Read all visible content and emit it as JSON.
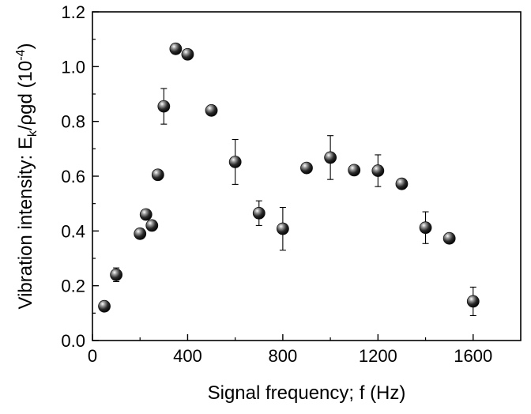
{
  "chart_data": {
    "type": "scatter",
    "xlabel": "Signal frequency; f (Hz)",
    "ylabel": {
      "prefix": "Vibration intensity: E",
      "sub": "k",
      "mid": "/ρgd (10",
      "sup": "-4",
      "suffix": ")"
    },
    "xlim": [
      0,
      1800
    ],
    "ylim": [
      0.0,
      1.2
    ],
    "xticks": [
      0,
      400,
      800,
      1200,
      1600
    ],
    "xtick_labels": [
      "0",
      "400",
      "800",
      "1200",
      "1600"
    ],
    "yticks": [
      0.0,
      0.2,
      0.4,
      0.6,
      0.8,
      1.0,
      1.2
    ],
    "ytick_labels": [
      "0.0",
      "0.2",
      "0.4",
      "0.6",
      "0.8",
      "1.0",
      "1.2"
    ],
    "grid": false,
    "marker_color": "#111111",
    "points": [
      {
        "x": 50,
        "y": 0.125,
        "err": 0.0
      },
      {
        "x": 100,
        "y": 0.24,
        "err": 0.025
      },
      {
        "x": 200,
        "y": 0.39,
        "err": 0.0
      },
      {
        "x": 225,
        "y": 0.46,
        "err": 0.0
      },
      {
        "x": 250,
        "y": 0.42,
        "err": 0.0
      },
      {
        "x": 275,
        "y": 0.605,
        "err": 0.0
      },
      {
        "x": 300,
        "y": 0.855,
        "err": 0.065
      },
      {
        "x": 350,
        "y": 1.065,
        "err": 0.0
      },
      {
        "x": 400,
        "y": 1.045,
        "err": 0.0
      },
      {
        "x": 500,
        "y": 0.84,
        "err": 0.0
      },
      {
        "x": 600,
        "y": 0.652,
        "err": 0.082
      },
      {
        "x": 700,
        "y": 0.465,
        "err": 0.045
      },
      {
        "x": 800,
        "y": 0.408,
        "err": 0.078
      },
      {
        "x": 900,
        "y": 0.63,
        "err": 0.0
      },
      {
        "x": 1000,
        "y": 0.668,
        "err": 0.08
      },
      {
        "x": 1100,
        "y": 0.622,
        "err": 0.0
      },
      {
        "x": 1200,
        "y": 0.62,
        "err": 0.058
      },
      {
        "x": 1300,
        "y": 0.572,
        "err": 0.0
      },
      {
        "x": 1400,
        "y": 0.412,
        "err": 0.058
      },
      {
        "x": 1500,
        "y": 0.373,
        "err": 0.0
      },
      {
        "x": 1600,
        "y": 0.143,
        "err": 0.052
      }
    ]
  }
}
